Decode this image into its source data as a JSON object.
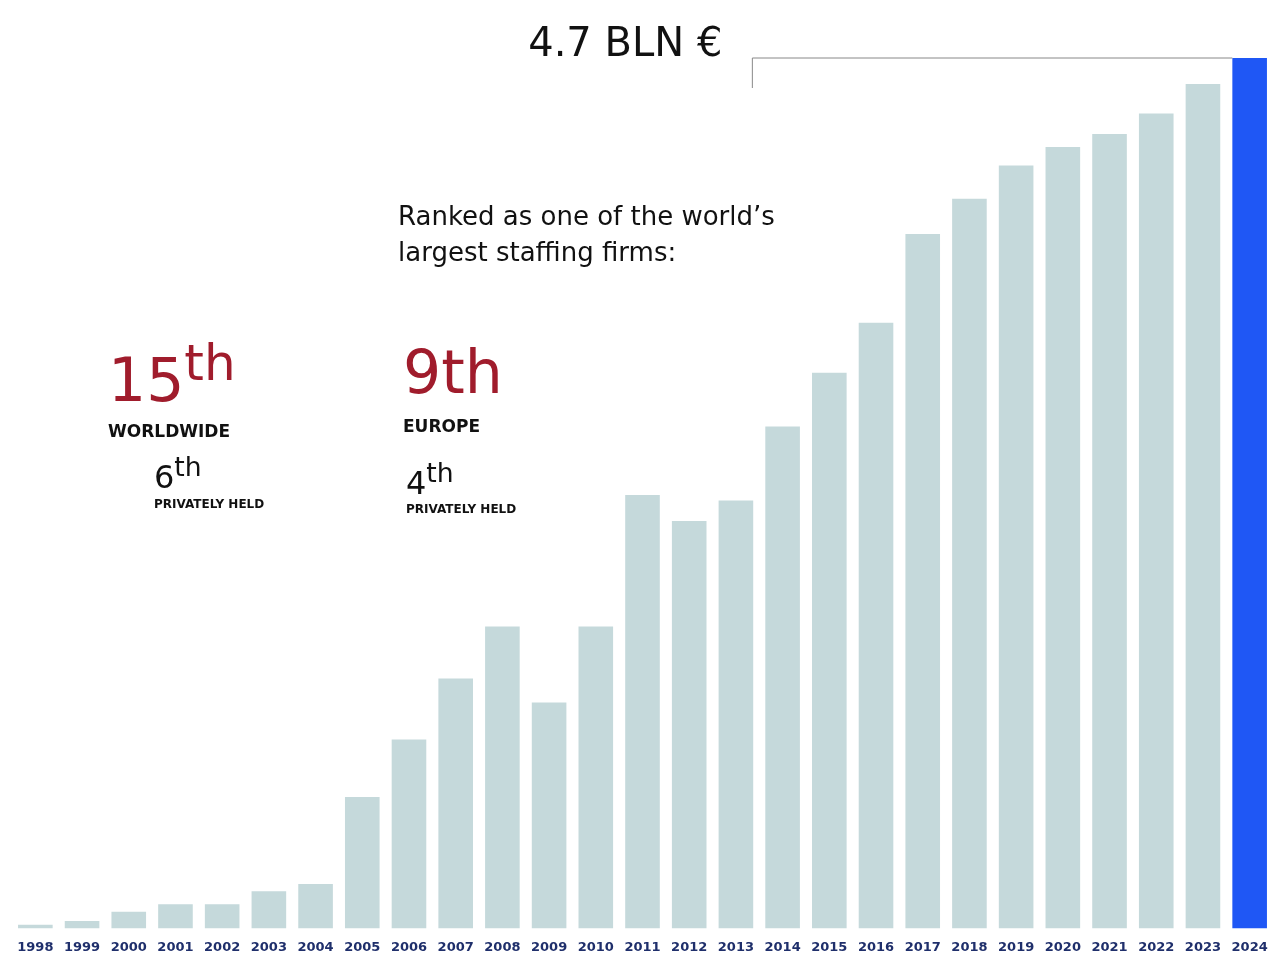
{
  "chart_data": {
    "type": "bar",
    "ylim": [
      0,
      4.7
    ],
    "tick_labels": "x",
    "legend": false,
    "categories": [
      "1998",
      "1999",
      "2000",
      "2001",
      "2002",
      "2003",
      "2004",
      "2005",
      "2006",
      "2007",
      "2008",
      "2009",
      "2010",
      "2011",
      "2012",
      "2013",
      "2014",
      "2015",
      "2016",
      "2017",
      "2018",
      "2019",
      "2020",
      "2021",
      "2022",
      "2023",
      "2024"
    ],
    "values": [
      0.02,
      0.04,
      0.09,
      0.13,
      0.13,
      0.2,
      0.24,
      0.71,
      1.02,
      1.35,
      1.63,
      1.22,
      1.63,
      2.34,
      2.2,
      2.31,
      2.71,
      3.0,
      3.27,
      3.75,
      3.94,
      4.12,
      4.22,
      4.29,
      4.4,
      4.56,
      4.7
    ],
    "colors": [
      "#c5d9db",
      "#c5d9db",
      "#c5d9db",
      "#c5d9db",
      "#c5d9db",
      "#c5d9db",
      "#c5d9db",
      "#c5d9db",
      "#c5d9db",
      "#c5d9db",
      "#c5d9db",
      "#c5d9db",
      "#c5d9db",
      "#c5d9db",
      "#c5d9db",
      "#c5d9db",
      "#c5d9db",
      "#c5d9db",
      "#c5d9db",
      "#c5d9db",
      "#c5d9db",
      "#c5d9db",
      "#c5d9db",
      "#c5d9db",
      "#c5d9db",
      "#c5d9db",
      "#1f57f5"
    ],
    "value_labels": [
      null,
      null,
      null,
      null,
      null,
      null,
      null,
      null,
      null,
      null,
      null,
      null,
      null,
      null,
      null,
      null,
      null,
      null,
      null,
      null,
      null,
      null,
      null,
      null,
      null,
      null,
      "4.7 BLN €"
    ],
    "annotations": [
      "Ranked as one of the world’s largest staffing firms:",
      "15$^{th}$",
      "WORLDWIDE",
      "6$^{th}$",
      "PRIVATELY HELD",
      "9th",
      "EUROPE",
      "4$^{th}$",
      "PRIVATELY HELD"
    ]
  }
}
